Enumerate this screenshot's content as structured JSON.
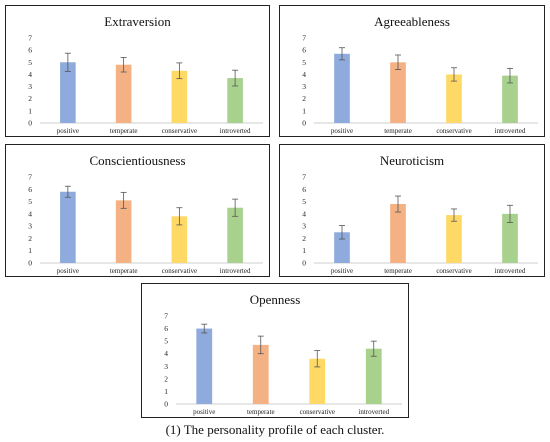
{
  "caption": "(1) The personality profile of each cluster.",
  "colors": {
    "positive": "#8faadc",
    "temperate": "#f4b183",
    "conservative": "#ffd966",
    "introverted": "#a9d18e",
    "error_bar": "#555555",
    "axis": "#bfbfbf"
  },
  "chart_data": [
    {
      "type": "bar",
      "title": "Extraversion",
      "categories": [
        "positive",
        "temperate",
        "conservative",
        "introverted"
      ],
      "values": [
        5.0,
        4.8,
        4.3,
        3.7
      ],
      "errors": [
        0.75,
        0.6,
        0.65,
        0.65
      ],
      "yticks": [
        0,
        1,
        2,
        3,
        4,
        5,
        6,
        7
      ],
      "ylim": [
        0,
        7
      ],
      "grid": false,
      "legend": "none"
    },
    {
      "type": "bar",
      "title": "Agreeableness",
      "categories": [
        "positive",
        "temperate",
        "conservative",
        "introverted"
      ],
      "values": [
        5.7,
        5.0,
        4.0,
        3.9
      ],
      "errors": [
        0.5,
        0.6,
        0.55,
        0.6
      ],
      "yticks": [
        0,
        1,
        2,
        3,
        4,
        5,
        6,
        7
      ],
      "ylim": [
        0,
        7
      ],
      "grid": false,
      "legend": "none"
    },
    {
      "type": "bar",
      "title": "Conscientiousness",
      "categories": [
        "positive",
        "temperate",
        "conservative",
        "introverted"
      ],
      "values": [
        5.8,
        5.1,
        3.8,
        4.5
      ],
      "errors": [
        0.45,
        0.65,
        0.7,
        0.7
      ],
      "yticks": [
        0,
        1,
        2,
        3,
        4,
        5,
        6,
        7
      ],
      "ylim": [
        0,
        7
      ],
      "grid": false,
      "legend": "none"
    },
    {
      "type": "bar",
      "title": "Neuroticism",
      "categories": [
        "positive",
        "temperate",
        "conservative",
        "introverted"
      ],
      "values": [
        2.5,
        4.8,
        3.9,
        4.0
      ],
      "errors": [
        0.55,
        0.65,
        0.5,
        0.7
      ],
      "yticks": [
        0,
        1,
        2,
        3,
        4,
        5,
        6,
        7
      ],
      "ylim": [
        0,
        7
      ],
      "grid": false,
      "legend": "none"
    },
    {
      "type": "bar",
      "title": "Openness",
      "categories": [
        "positive",
        "temperate",
        "conservative",
        "introverted"
      ],
      "values": [
        6.0,
        4.7,
        3.6,
        4.4
      ],
      "errors": [
        0.35,
        0.7,
        0.65,
        0.6
      ],
      "yticks": [
        0,
        1,
        2,
        3,
        4,
        5,
        6,
        7
      ],
      "ylim": [
        0,
        7
      ],
      "grid": false,
      "legend": "none"
    }
  ]
}
